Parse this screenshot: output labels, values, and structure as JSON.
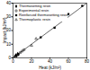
{
  "chart_data": {
    "type": "scatter",
    "x_label": "Heat (kJ/m²)",
    "y_label": "Impact (kJ/m²)",
    "xlim": [
      0,
      80
    ],
    "xticks": [
      0,
      20,
      40,
      60,
      80
    ],
    "ylim": [
      0,
      40
    ],
    "yticks": [
      0,
      10,
      20,
      30,
      40
    ],
    "legend": "top-left",
    "series": [
      {
        "name": "Thermosetting resin",
        "color": "#000000",
        "marker": "diamond",
        "x": [
          2,
          3,
          4,
          5,
          6
        ],
        "values": [
          1,
          2,
          1.5,
          3,
          2.5
        ]
      },
      {
        "name": "Experimental resin",
        "color": "#000000",
        "marker": "square_open",
        "x": [
          8,
          10,
          12
        ],
        "values": [
          4,
          5,
          6
        ]
      },
      {
        "name": "Reinforced thermosetting resin",
        "color": "#000000",
        "marker": "square",
        "x": [
          30,
          45,
          60,
          75
        ],
        "values": [
          15,
          22,
          32,
          38
        ]
      },
      {
        "name": "Thermoplastic resin",
        "color": "#000000",
        "marker": "triangle_open",
        "x": [
          20,
          25,
          55
        ],
        "values": [
          9,
          14,
          28
        ]
      }
    ],
    "trend_line": {
      "color": "#000000",
      "x": [
        0,
        80
      ],
      "values": [
        0,
        40
      ]
    }
  }
}
